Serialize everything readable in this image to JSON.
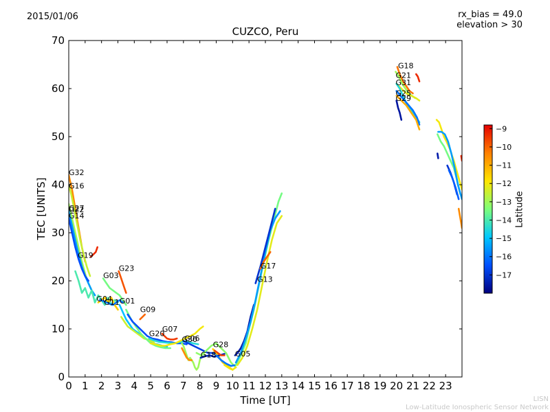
{
  "header": {
    "date": "2015/01/06",
    "rx_bias": "rx_bias = 49.0",
    "elevation": "elevation > 30"
  },
  "footer": {
    "credit_short": "LISN",
    "credit_long": "Low-Latitude Ionospheric Sensor Network"
  },
  "colors": {
    "scale": [
      "#00007f",
      "#0050ff",
      "#00c8ff",
      "#7dff7a",
      "#ffe600",
      "#ff8000",
      "#e50000"
    ],
    "dark_green": "#00a000"
  },
  "chart_data": {
    "type": "line",
    "title": "CUZCO, Peru",
    "xlabel": "Time [UT]",
    "ylabel": "TEC [UNITS]",
    "xlim": [
      0,
      24
    ],
    "ylim": [
      0,
      70
    ],
    "xticks": [
      "0",
      "1",
      "2",
      "3",
      "4",
      "5",
      "6",
      "7",
      "8",
      "9",
      "10",
      "11",
      "12",
      "13",
      "14",
      "15",
      "16",
      "17",
      "18",
      "19",
      "20",
      "21",
      "22",
      "23"
    ],
    "yticks": [
      "0",
      "10",
      "20",
      "30",
      "40",
      "50",
      "60",
      "70"
    ],
    "grid": false,
    "colorbar": {
      "label": "Latitude",
      "range": [
        -18,
        -8.8
      ],
      "ticks": [
        "−9",
        "−10",
        "−11",
        "−12",
        "−13",
        "−14",
        "−15",
        "−16",
        "−17"
      ]
    },
    "annotations": [
      {
        "text": "G32",
        "x": 0.0,
        "y": 42.0
      },
      {
        "text": "G16",
        "x": 0.0,
        "y": 39.2
      },
      {
        "text": "G27",
        "x": 0.0,
        "y": 34.6
      },
      {
        "text": "G22",
        "x": 0.0,
        "y": 34.3
      },
      {
        "text": "G14",
        "x": 0.0,
        "y": 33.0
      },
      {
        "text": "G19",
        "x": 0.55,
        "y": 24.8
      },
      {
        "text": "G03",
        "x": 2.1,
        "y": 20.6
      },
      {
        "text": "G23",
        "x": 3.05,
        "y": 22.1
      },
      {
        "text": "G04",
        "x": 1.7,
        "y": 15.7
      },
      {
        "text": "G11",
        "x": 2.15,
        "y": 15.0
      },
      {
        "text": "G01",
        "x": 3.1,
        "y": 15.3
      },
      {
        "text": "G09",
        "x": 4.35,
        "y": 13.5
      },
      {
        "text": "G20",
        "x": 4.9,
        "y": 8.5
      },
      {
        "text": "G07",
        "x": 5.7,
        "y": 9.4
      },
      {
        "text": "G30",
        "x": 6.9,
        "y": 7.3
      },
      {
        "text": "G06",
        "x": 7.05,
        "y": 7.5
      },
      {
        "text": "G28",
        "x": 8.8,
        "y": 6.2
      },
      {
        "text": "G18",
        "x": 8.05,
        "y": 4.1
      },
      {
        "text": "G05",
        "x": 10.15,
        "y": 4.3
      },
      {
        "text": "G17",
        "x": 11.7,
        "y": 22.6
      },
      {
        "text": "G13",
        "x": 11.5,
        "y": 19.8
      },
      {
        "text": "G18",
        "x": 20.1,
        "y": 64.2
      },
      {
        "text": "G21",
        "x": 19.95,
        "y": 62.2
      },
      {
        "text": "G31",
        "x": 19.95,
        "y": 60.7
      },
      {
        "text": "G25",
        "x": 19.95,
        "y": 58.5
      },
      {
        "text": "G29",
        "x": 19.95,
        "y": 57.4
      }
    ],
    "series": [
      {
        "lat": -10.5,
        "x": [
          0.0,
          0.2,
          0.4,
          0.6,
          0.8,
          1.0
        ],
        "y": [
          42.0,
          39.0,
          35.0,
          31.0,
          27.0,
          24.0
        ]
      },
      {
        "lat": -12.5,
        "x": [
          0.0,
          0.15,
          0.3,
          0.5,
          0.7,
          0.9,
          1.1,
          1.3
        ],
        "y": [
          40.0,
          38.0,
          35.5,
          32.0,
          28.5,
          25.5,
          23.0,
          21.0
        ]
      },
      {
        "lat": -13.0,
        "x": [
          0.0,
          0.2,
          0.4,
          0.6,
          0.8,
          1.0,
          1.2,
          1.4
        ],
        "y": [
          36.0,
          33.0,
          30.0,
          27.0,
          24.0,
          21.5,
          19.5,
          18.0
        ]
      },
      {
        "lat": -15.5,
        "x": [
          0.0,
          0.2,
          0.4,
          0.6,
          0.8,
          1.0,
          1.2,
          1.4,
          1.6
        ],
        "y": [
          34.5,
          31.5,
          28.5,
          25.5,
          23.0,
          21.0,
          19.5,
          18.0,
          17.0
        ]
      },
      {
        "lat": -16.5,
        "x": [
          0.0,
          0.2,
          0.4,
          0.6,
          0.8,
          1.0,
          1.2
        ],
        "y": [
          33.0,
          30.0,
          27.0,
          24.5,
          22.5,
          21.0,
          20.0
        ]
      },
      {
        "lat": -14.0,
        "x": [
          0.4,
          0.6,
          0.8,
          1.0,
          1.2,
          1.4,
          1.6,
          1.8,
          2.0,
          2.2,
          2.4,
          2.6,
          2.8,
          3.0
        ],
        "y": [
          22.0,
          20.0,
          17.5,
          18.5,
          16.5,
          18.0,
          15.5,
          17.0,
          16.0,
          15.0,
          16.5,
          15.0,
          16.0,
          15.5
        ]
      },
      {
        "lat": -9.3,
        "x": [
          1.35,
          1.5,
          1.65,
          1.75
        ],
        "y": [
          25.0,
          25.5,
          26.0,
          27.0
        ]
      },
      {
        "lat": -13.5,
        "x": [
          2.1,
          2.3,
          2.5,
          2.7,
          2.9,
          3.1,
          3.3,
          3.5
        ],
        "y": [
          20.5,
          19.5,
          18.5,
          18.0,
          17.5,
          17.0,
          16.0,
          15.0
        ]
      },
      {
        "lat": -11.5,
        "x": [
          1.8,
          2.0,
          2.2,
          2.4,
          2.6,
          2.8,
          3.0
        ],
        "y": [
          15.5,
          16.0,
          16.5,
          15.5,
          16.5,
          15.0,
          14.0
        ]
      },
      {
        "lat": -16.0,
        "x": [
          1.9,
          2.1,
          2.3,
          2.5,
          2.7,
          2.9,
          3.1,
          3.3
        ],
        "y": [
          16.0,
          15.8,
          15.5,
          15.2,
          15.0,
          15.5,
          16.0,
          15.5
        ]
      },
      {
        "lat": -9.8,
        "x": [
          3.05,
          3.2,
          3.35,
          3.5
        ],
        "y": [
          22.0,
          20.5,
          19.0,
          17.5
        ]
      },
      {
        "lat": -15.0,
        "x": [
          3.1,
          3.3,
          3.5,
          3.7,
          3.9,
          4.1,
          4.3,
          4.5,
          4.7,
          4.9,
          5.1,
          5.4,
          5.7,
          6.0
        ],
        "y": [
          15.0,
          13.5,
          12.0,
          11.0,
          10.0,
          9.5,
          9.0,
          8.5,
          8.0,
          7.5,
          7.0,
          6.8,
          6.5,
          6.3
        ]
      },
      {
        "lat": -12.5,
        "x": [
          3.2,
          3.4,
          3.6,
          3.8,
          4.0,
          4.2,
          4.4,
          4.6,
          4.8,
          5.0,
          5.2
        ],
        "y": [
          12.5,
          11.5,
          10.5,
          10.0,
          9.5,
          9.0,
          8.5,
          8.0,
          7.8,
          7.5,
          7.2
        ]
      },
      {
        "lat": -13.5,
        "x": [
          3.5,
          3.8,
          4.1,
          4.4,
          4.7,
          5.0,
          5.3,
          5.6,
          5.9,
          6.2
        ],
        "y": [
          14.0,
          12.0,
          10.5,
          9.0,
          8.0,
          7.0,
          6.5,
          6.2,
          6.0,
          6.0
        ]
      },
      {
        "lat": -16.5,
        "x": [
          3.6,
          3.9,
          4.2,
          4.5,
          4.8,
          5.1,
          5.4,
          5.7,
          6.0,
          6.3,
          6.6,
          6.9,
          7.2
        ],
        "y": [
          13.0,
          11.5,
          10.5,
          9.5,
          8.5,
          8.0,
          7.8,
          7.5,
          7.3,
          7.2,
          7.0,
          7.0,
          6.8
        ]
      },
      {
        "lat": -10.0,
        "x": [
          4.35,
          4.5,
          4.65
        ],
        "y": [
          12.0,
          12.5,
          13.0
        ]
      },
      {
        "lat": -14.5,
        "x": [
          4.9,
          5.2,
          5.5,
          5.8,
          6.1,
          6.4,
          6.7,
          7.0,
          7.3,
          7.6,
          7.9
        ],
        "y": [
          8.0,
          7.6,
          7.3,
          7.2,
          7.1,
          7.0,
          7.2,
          7.4,
          7.3,
          7.0,
          6.8
        ]
      },
      {
        "lat": -12.0,
        "x": [
          5.0,
          5.3,
          5.6,
          5.9,
          6.2,
          6.5,
          6.8,
          7.1,
          7.4,
          7.7,
          8.0,
          8.2
        ],
        "y": [
          7.0,
          6.8,
          6.5,
          6.5,
          6.8,
          7.0,
          7.5,
          8.0,
          8.5,
          9.0,
          10.0,
          10.5
        ]
      },
      {
        "lat": -9.5,
        "x": [
          5.7,
          5.85,
          6.0,
          6.2,
          6.4,
          6.6
        ],
        "y": [
          9.0,
          8.5,
          8.0,
          7.8,
          7.8,
          8.0
        ]
      },
      {
        "lat": -13.0,
        "x": [
          6.9,
          7.0,
          7.1,
          7.2,
          7.3,
          7.4,
          7.5,
          7.6,
          7.7,
          7.8,
          7.9,
          8.0,
          8.1,
          8.2,
          8.3
        ],
        "y": [
          7.0,
          6.5,
          5.5,
          4.5,
          3.5,
          4.0,
          3.5,
          3.0,
          2.0,
          1.5,
          2.0,
          3.5,
          4.5,
          5.0,
          4.5
        ]
      },
      {
        "lat": -10.5,
        "x": [
          6.9,
          7.05,
          7.2,
          7.35,
          7.5
        ],
        "y": [
          6.0,
          5.0,
          4.0,
          3.5,
          3.5
        ]
      },
      {
        "lat": -16.8,
        "x": [
          7.0,
          7.3,
          7.6,
          7.9,
          8.2,
          8.5,
          8.8,
          9.1
        ],
        "y": [
          7.5,
          7.0,
          6.5,
          6.0,
          5.5,
          5.0,
          5.0,
          4.8
        ]
      },
      {
        "lat": -13.2,
        "x": [
          7.8,
          8.1,
          8.4,
          8.7,
          9.0,
          9.3,
          9.6,
          9.9,
          10.2
        ],
        "y": [
          5.0,
          4.5,
          5.5,
          6.5,
          7.0,
          6.0,
          5.0,
          3.0,
          2.0
        ]
      },
      {
        "lat": -11.5,
        "x": [
          8.8,
          9.0,
          9.2,
          9.4,
          9.6,
          9.8,
          10.0
        ],
        "y": [
          5.8,
          5.0,
          4.0,
          3.0,
          2.5,
          2.0,
          1.5
        ]
      },
      {
        "lat": -17.3,
        "x": [
          8.05,
          8.3,
          8.6,
          8.9,
          9.2,
          9.5
        ],
        "y": [
          4.0,
          4.3,
          4.5,
          4.2,
          4.5,
          4.8
        ]
      },
      {
        "lat": -9.6,
        "x": [
          8.9,
          9.1,
          9.3,
          9.5
        ],
        "y": [
          5.5,
          5.0,
          4.5,
          4.5
        ]
      },
      {
        "lat": -12.0,
        "x": [
          9.5,
          9.8,
          10.0,
          10.2
        ],
        "y": [
          2.5,
          1.8,
          1.5,
          2.0
        ]
      },
      {
        "lat": -16.0,
        "x": [
          9.0,
          9.3,
          9.6,
          9.9,
          10.2
        ],
        "y": [
          4.5,
          3.5,
          2.8,
          2.3,
          2.5
        ]
      },
      {
        "lat": -17.5,
        "x": [
          10.15,
          10.3,
          10.5,
          10.7,
          10.9,
          11.1,
          11.3
        ],
        "y": [
          4.5,
          5.0,
          6.0,
          7.5,
          9.5,
          12.5,
          15.0
        ]
      },
      {
        "lat": -13.5,
        "x": [
          10.2,
          10.5,
          10.8,
          11.0,
          11.3,
          11.6,
          11.9,
          12.2,
          12.5,
          12.8,
          13.0
        ],
        "y": [
          2.5,
          4.5,
          7.0,
          10.0,
          14.0,
          19.0,
          24.0,
          28.5,
          32.5,
          36.5,
          38.2
        ]
      },
      {
        "lat": -12.2,
        "x": [
          10.3,
          10.6,
          10.9,
          11.2,
          11.5,
          11.8,
          12.1,
          12.4,
          12.7,
          13.0
        ],
        "y": [
          2.5,
          4.0,
          6.5,
          10.0,
          14.0,
          19.0,
          24.0,
          28.5,
          32.0,
          33.5
        ]
      },
      {
        "lat": -15.5,
        "x": [
          10.2,
          10.5,
          10.8,
          11.1,
          11.4,
          11.7,
          12.0,
          12.3,
          12.6,
          12.9
        ],
        "y": [
          3.0,
          5.0,
          8.0,
          11.5,
          16.0,
          21.0,
          26.0,
          30.5,
          33.0,
          34.5
        ]
      },
      {
        "lat": -17.0,
        "x": [
          11.4,
          11.7,
          12.0,
          12.3,
          12.6
        ],
        "y": [
          19.5,
          23.0,
          27.0,
          31.0,
          35.0
        ]
      },
      {
        "lat": -10.0,
        "x": [
          11.7,
          11.9,
          12.1,
          12.3
        ],
        "y": [
          22.5,
          24.0,
          25.0,
          26.0
        ]
      },
      {
        "lat": -10.2,
        "x": [
          20.05,
          20.2,
          20.4,
          20.6,
          20.8,
          21.0
        ],
        "y": [
          64.5,
          63.0,
          61.5,
          60.5,
          59.5,
          59.0
        ]
      },
      {
        "lat": -13.0,
        "x": [
          19.95,
          20.15,
          20.35,
          20.55,
          20.75,
          20.95,
          21.15
        ],
        "y": [
          63.5,
          62.5,
          61.0,
          60.0,
          59.0,
          58.5,
          58.0
        ]
      },
      {
        "lat": -12.2,
        "x": [
          20.0,
          20.3,
          20.6,
          20.9,
          21.2,
          21.4
        ],
        "y": [
          61.0,
          60.0,
          59.0,
          58.5,
          58.0,
          57.5
        ]
      },
      {
        "lat": -14.5,
        "x": [
          20.0,
          20.2,
          20.4,
          20.6,
          20.8,
          21.0,
          21.2,
          21.4
        ],
        "y": [
          61.0,
          60.0,
          58.5,
          57.0,
          56.0,
          55.0,
          54.0,
          53.0
        ]
      },
      {
        "lat": -16.0,
        "x": [
          20.0,
          20.25,
          20.5,
          20.75,
          21.0,
          21.25,
          21.4
        ],
        "y": [
          59.5,
          58.5,
          57.5,
          56.5,
          55.5,
          54.0,
          52.5
        ]
      },
      {
        "lat": -11.0,
        "x": [
          20.0,
          20.3,
          20.6,
          20.9,
          21.2,
          21.4
        ],
        "y": [
          58.5,
          57.5,
          56.5,
          55.0,
          53.5,
          51.5
        ]
      },
      {
        "lat": -17.6,
        "x": [
          20.0,
          20.1,
          20.2,
          20.3
        ],
        "y": [
          57.5,
          56.0,
          55.0,
          53.5
        ]
      },
      {
        "lat": -9.3,
        "x": [
          21.2,
          21.3,
          21.4
        ],
        "y": [
          63.0,
          62.5,
          61.5
        ]
      },
      {
        "lat": -17.5,
        "x": [
          22.5,
          22.55
        ],
        "y": [
          46.5,
          45.5
        ]
      },
      {
        "lat": -12.0,
        "x": [
          22.45,
          22.6,
          22.75,
          22.9,
          23.05,
          23.25,
          23.5,
          23.75,
          24.0
        ],
        "y": [
          53.5,
          53.0,
          51.5,
          50.0,
          49.0,
          47.5,
          45.0,
          42.0,
          39.0
        ]
      },
      {
        "lat": -13.5,
        "x": [
          22.5,
          22.7,
          22.9,
          23.1,
          23.3,
          23.5,
          23.7,
          23.9
        ],
        "y": [
          50.5,
          49.0,
          48.0,
          46.5,
          45.0,
          43.5,
          41.0,
          38.0
        ]
      },
      {
        "lat": -15.5,
        "x": [
          22.55,
          22.75,
          22.95,
          23.15,
          23.35,
          23.55,
          23.75,
          24.0
        ],
        "y": [
          51.0,
          51.0,
          50.5,
          49.0,
          46.5,
          43.5,
          40.0,
          37.0
        ]
      },
      {
        "lat": -17.0,
        "x": [
          23.1,
          23.3,
          23.5,
          23.7
        ],
        "y": [
          44.0,
          42.5,
          40.5,
          38.0
        ]
      },
      {
        "lat": -16.3,
        "x": [
          23.2,
          23.4,
          23.6,
          23.8
        ],
        "y": [
          43.0,
          41.5,
          39.5,
          37.0
        ]
      },
      {
        "lat": -10.5,
        "x": [
          23.8,
          23.9,
          24.0
        ],
        "y": [
          35.0,
          33.0,
          31.0
        ]
      },
      {
        "lat": -9.3,
        "x": [
          23.95,
          24.0
        ],
        "y": [
          46.0,
          45.0
        ]
      }
    ]
  }
}
